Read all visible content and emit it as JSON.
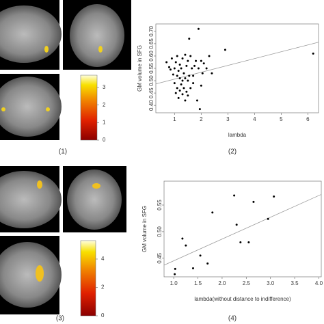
{
  "panel_labels": [
    "(1)",
    "(2)",
    "(3)",
    "(4)"
  ],
  "chart_data": [
    {
      "type": "scatter",
      "x_label": "lambda",
      "y_label": "GM volume in SFG",
      "color": "#000000",
      "line_color": "#999999",
      "x": [
        0.7,
        0.8,
        0.85,
        0.9,
        0.95,
        1.0,
        1.0,
        1.05,
        1.05,
        1.1,
        1.1,
        1.1,
        1.15,
        1.15,
        1.2,
        1.2,
        1.2,
        1.25,
        1.25,
        1.3,
        1.3,
        1.3,
        1.35,
        1.35,
        1.4,
        1.4,
        1.4,
        1.45,
        1.45,
        1.5,
        1.5,
        1.5,
        1.55,
        1.55,
        1.6,
        1.6,
        1.65,
        1.7,
        1.7,
        1.75,
        1.8,
        1.85,
        1.9,
        1.9,
        1.95,
        2.0,
        2.0,
        2.05,
        2.1,
        2.2,
        2.3,
        2.4,
        2.9,
        6.2
      ],
      "y": [
        0.575,
        0.555,
        0.545,
        0.59,
        0.525,
        0.55,
        0.49,
        0.575,
        0.45,
        0.52,
        0.6,
        0.47,
        0.54,
        0.43,
        0.51,
        0.565,
        0.46,
        0.55,
        0.485,
        0.59,
        0.5,
        0.445,
        0.53,
        0.47,
        0.605,
        0.51,
        0.42,
        0.56,
        0.455,
        0.58,
        0.5,
        0.44,
        0.67,
        0.52,
        0.6,
        0.47,
        0.55,
        0.49,
        0.52,
        0.56,
        0.58,
        0.42,
        0.71,
        0.55,
        0.385,
        0.58,
        0.48,
        0.53,
        0.57,
        0.55,
        0.6,
        0.53,
        0.625,
        0.61
      ],
      "trend_line": {
        "x": [
          0.3,
          6.4
        ],
        "y": [
          0.487,
          0.656
        ]
      },
      "xlim": [
        0.3,
        6.4
      ],
      "ylim": [
        0.37,
        0.73
      ],
      "xticks": [
        1,
        2,
        3,
        4,
        5,
        6
      ],
      "yticks": [
        {
          "value": 0.4,
          "label": "0.40"
        },
        0.45,
        {
          "value": 0.5,
          "label": "0.50"
        },
        0.55,
        {
          "value": 0.6,
          "label": "0.60"
        },
        0.65,
        {
          "value": 0.7,
          "label": "0.70"
        }
      ]
    },
    {
      "type": "scatter",
      "x_label": "lambda(without distance to indifference)",
      "y_label": "GM volume in SFG",
      "color": "#000000",
      "line_color": "#999999",
      "x": [
        1.02,
        1.03,
        1.18,
        1.25,
        1.4,
        1.55,
        1.7,
        1.8,
        2.25,
        2.3,
        2.38,
        2.55,
        2.65,
        2.95,
        3.07
      ],
      "y": [
        0.42,
        0.43,
        0.487,
        0.474,
        0.431,
        0.455,
        0.44,
        0.536,
        0.568,
        0.513,
        0.48,
        0.48,
        0.556,
        0.524,
        0.566
      ],
      "trend_line": {
        "x": [
          0.8,
          4.05
        ],
        "y": [
          0.437,
          0.57
        ]
      },
      "xlim": [
        0.8,
        4.05
      ],
      "ylim": [
        0.415,
        0.595
      ],
      "xticks": [
        {
          "value": 1,
          "label": "1.0"
        },
        1.5,
        {
          "value": 2,
          "label": "2.0"
        },
        2.5,
        {
          "value": 3,
          "label": "3.0"
        },
        3.5,
        {
          "value": 4,
          "label": "4.0"
        }
      ],
      "yticks": [
        0.45,
        {
          "value": 0.5,
          "label": "0.50"
        },
        0.55
      ]
    },
    {
      "type": "colorbar",
      "ylim": [
        0,
        3.7
      ],
      "yticks": [
        0,
        1,
        2,
        3
      ]
    },
    {
      "type": "colorbar",
      "ylim": [
        0,
        5.3
      ],
      "yticks": [
        0,
        2,
        4
      ]
    }
  ]
}
